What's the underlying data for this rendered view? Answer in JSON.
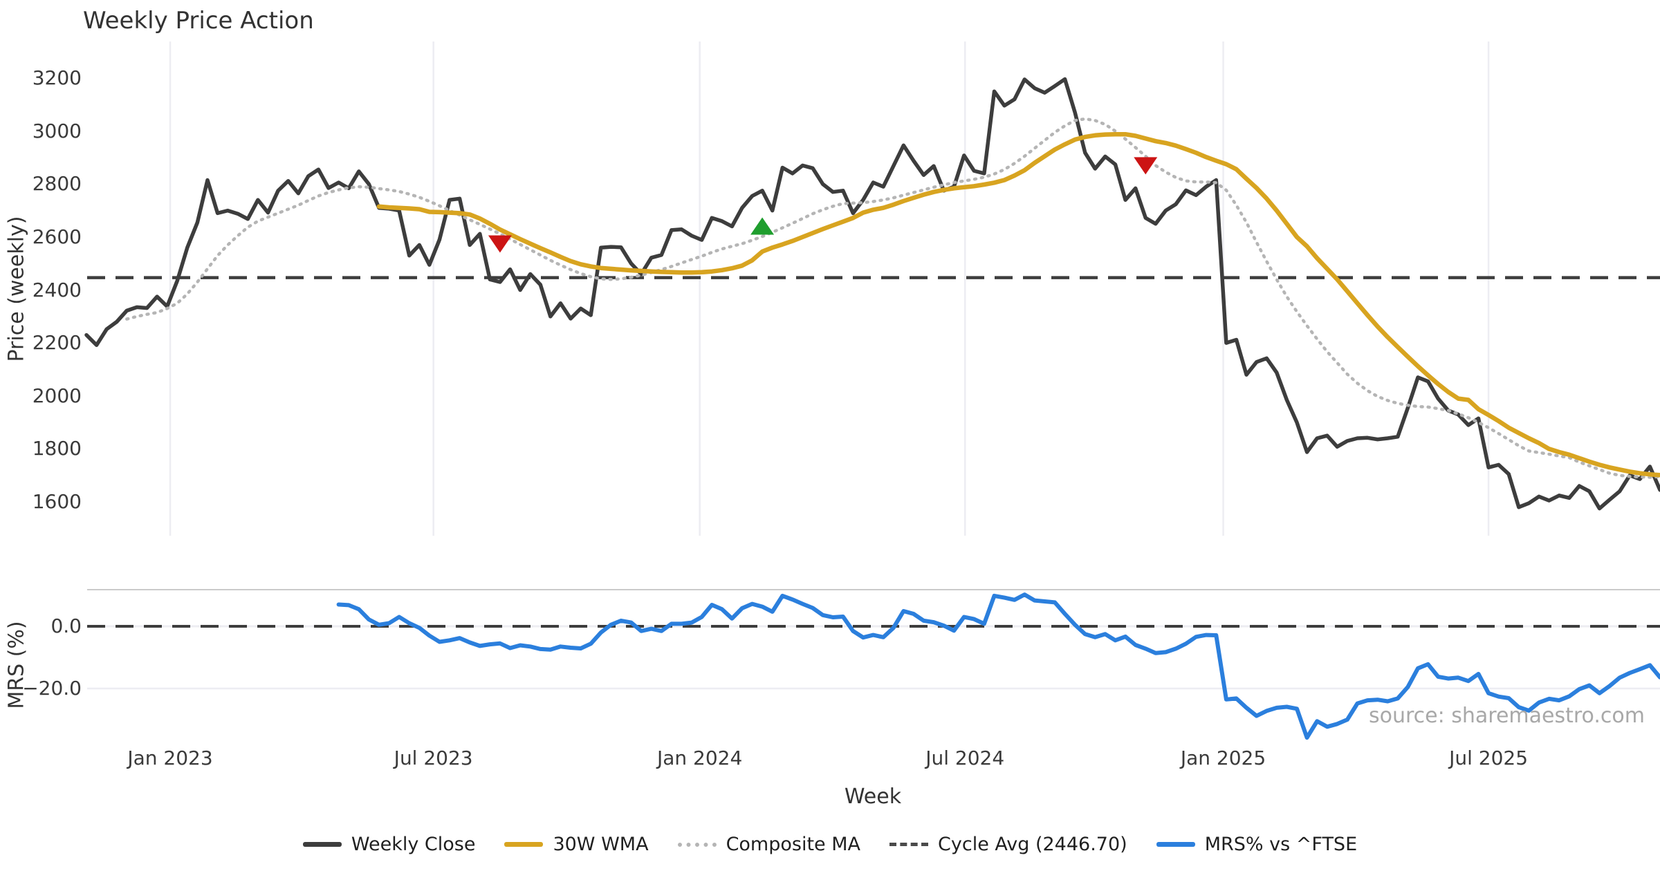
{
  "title": "Weekly Price Action",
  "source_note": "source: sharemaestro.com",
  "axes": {
    "x_label": "Week",
    "price_label": "Price (weekly)",
    "mrs_label": "MRS (%)"
  },
  "legend": {
    "items": [
      {
        "label": "Weekly Close",
        "swatch": "solid",
        "color": "#3d3d3d"
      },
      {
        "label": "30W WMA",
        "swatch": "solid",
        "color": "#d8a420"
      },
      {
        "label": "Composite MA",
        "swatch": "dotted",
        "color": "#b5b5b5"
      },
      {
        "label": "Cycle Avg (2446.70)",
        "swatch": "dashed",
        "color": "#4a4a4a"
      },
      {
        "label": "MRS% vs ^FTSE",
        "swatch": "solid",
        "color": "#2b7fdd"
      }
    ]
  },
  "colors": {
    "weekly_close": "#3d3d3d",
    "wma30": "#d8a420",
    "composite": "#b5b5b5",
    "cycle_avg": "#3d3d3d",
    "mrs": "#2b7fdd",
    "marker_down": "#cc1414",
    "marker_up": "#1f9e2e",
    "gridline": "#ededf2",
    "mrs_spine": "#cbcbcb"
  },
  "chart_data": {
    "type": "line",
    "title": "Weekly Price Action",
    "xlabel": "Week",
    "weeks_total": 157,
    "x_ticks": [
      {
        "label": "Jan 2023",
        "week": 8.3
      },
      {
        "label": "Jul 2023",
        "week": 34.4
      },
      {
        "label": "Jan 2024",
        "week": 60.8
      },
      {
        "label": "Jul 2024",
        "week": 87.1
      },
      {
        "label": "Jan 2025",
        "week": 112.7
      },
      {
        "label": "Jul 2025",
        "week": 139.0
      }
    ],
    "panels": [
      {
        "name": "price",
        "ylabel": "Price (weekly)",
        "ylim": [
          1470,
          3330
        ],
        "yticks": [
          3200,
          3000,
          2800,
          2600,
          2400,
          2200,
          2000,
          1800,
          1600
        ]
      },
      {
        "name": "mrs",
        "ylabel": "MRS (%)",
        "ylim": [
          -37,
          12
        ],
        "yticks": [
          {
            "value": 0,
            "label": "0.0"
          },
          {
            "value": -20,
            "label": "−20.0"
          }
        ]
      }
    ],
    "cycle_avg": 2446.7,
    "series": [
      {
        "name": "Weekly Close",
        "panel": "price",
        "style": "solid",
        "color": "#3d3d3d",
        "width": 5.5,
        "start_week": 0,
        "values": [
          2230,
          2192,
          2252,
          2280,
          2322,
          2335,
          2332,
          2375,
          2338,
          2435,
          2560,
          2655,
          2815,
          2690,
          2700,
          2688,
          2668,
          2740,
          2692,
          2775,
          2812,
          2765,
          2830,
          2855,
          2785,
          2806,
          2784,
          2848,
          2800,
          2710,
          2707,
          2700,
          2530,
          2570,
          2495,
          2590,
          2740,
          2745,
          2570,
          2612,
          2440,
          2430,
          2478,
          2400,
          2460,
          2420,
          2300,
          2350,
          2292,
          2330,
          2305,
          2560,
          2563,
          2561,
          2500,
          2460,
          2522,
          2532,
          2626,
          2629,
          2605,
          2589,
          2672,
          2660,
          2640,
          2710,
          2755,
          2775,
          2700,
          2862,
          2840,
          2870,
          2860,
          2800,
          2770,
          2775,
          2690,
          2740,
          2806,
          2790,
          2868,
          2946,
          2888,
          2834,
          2868,
          2775,
          2790,
          2908,
          2850,
          2840,
          3150,
          3096,
          3120,
          3195,
          3162,
          3145,
          3170,
          3196,
          3070,
          2918,
          2858,
          2904,
          2874,
          2740,
          2784,
          2672,
          2650,
          2700,
          2724,
          2776,
          2758,
          2790,
          2815,
          2200,
          2212,
          2080,
          2128,
          2142,
          2088,
          1985,
          1900,
          1788,
          1840,
          1850,
          1808,
          1830,
          1840,
          1842,
          1836,
          1840,
          1846,
          1955,
          2070,
          2055,
          1990,
          1945,
          1930,
          1890,
          1915,
          1730,
          1740,
          1705,
          1580,
          1595,
          1620,
          1605,
          1624,
          1615,
          1660,
          1640,
          1575,
          1608,
          1640,
          1700,
          1686,
          1733,
          1645
        ]
      },
      {
        "name": "Composite MA",
        "panel": "price",
        "style": "dotted",
        "color": "#b5b5b5",
        "width": 4.5,
        "start_week": 4,
        "values": [
          2290,
          2300,
          2308,
          2315,
          2330,
          2350,
          2385,
          2430,
          2480,
          2530,
          2570,
          2605,
          2637,
          2660,
          2675,
          2690,
          2705,
          2720,
          2738,
          2755,
          2768,
          2778,
          2786,
          2790,
          2788,
          2783,
          2778,
          2772,
          2762,
          2750,
          2735,
          2718,
          2700,
          2683,
          2665,
          2648,
          2630,
          2612,
          2592,
          2572,
          2552,
          2532,
          2512,
          2494,
          2477,
          2462,
          2450,
          2442,
          2440,
          2442,
          2448,
          2456,
          2466,
          2477,
          2489,
          2502,
          2515,
          2528,
          2542,
          2555,
          2565,
          2575,
          2588,
          2602,
          2618,
          2635,
          2652,
          2670,
          2688,
          2703,
          2716,
          2726,
          2728,
          2730,
          2734,
          2740,
          2748,
          2758,
          2768,
          2778,
          2788,
          2797,
          2806,
          2812,
          2818,
          2826,
          2838,
          2855,
          2878,
          2905,
          2935,
          2965,
          2995,
          3020,
          3040,
          3046,
          3040,
          3025,
          3000,
          2970,
          2938,
          2905,
          2870,
          2845,
          2825,
          2812,
          2808,
          2808,
          2805,
          2777,
          2720,
          2655,
          2580,
          2508,
          2440,
          2375,
          2318,
          2265,
          2215,
          2167,
          2125,
          2082,
          2048,
          2020,
          1998,
          1983,
          1972,
          1965,
          1960,
          1958,
          1952,
          1945,
          1932,
          1918,
          1900,
          1880,
          1858,
          1835,
          1812,
          1792,
          1786,
          1780,
          1773,
          1767,
          1750,
          1736,
          1722,
          1708,
          1700,
          1696,
          1694,
          1693,
          1695
        ]
      },
      {
        "name": "30W WMA",
        "panel": "price",
        "style": "solid",
        "color": "#d8a420",
        "width": 6.5,
        "start_week": 29,
        "values": [
          2715,
          2712,
          2710,
          2708,
          2705,
          2695,
          2694,
          2692,
          2690,
          2685,
          2670,
          2650,
          2628,
          2610,
          2592,
          2575,
          2558,
          2542,
          2525,
          2509,
          2497,
          2489,
          2483,
          2480,
          2477,
          2474,
          2472,
          2470,
          2468,
          2467,
          2466,
          2466,
          2467,
          2470,
          2475,
          2482,
          2492,
          2512,
          2545,
          2560,
          2572,
          2585,
          2600,
          2615,
          2630,
          2644,
          2658,
          2672,
          2692,
          2703,
          2710,
          2722,
          2736,
          2748,
          2760,
          2770,
          2778,
          2784,
          2788,
          2792,
          2798,
          2805,
          2815,
          2832,
          2852,
          2880,
          2905,
          2930,
          2950,
          2968,
          2978,
          2984,
          2987,
          2988,
          2988,
          2982,
          2972,
          2962,
          2955,
          2945,
          2932,
          2918,
          2902,
          2888,
          2875,
          2856,
          2820,
          2785,
          2745,
          2700,
          2650,
          2600,
          2565,
          2520,
          2480,
          2440,
          2395,
          2350,
          2305,
          2262,
          2222,
          2185,
          2148,
          2112,
          2078,
          2045,
          2015,
          1990,
          1985,
          1950,
          1928,
          1905,
          1880,
          1860,
          1840,
          1822,
          1800,
          1788,
          1778,
          1765,
          1752,
          1740,
          1730,
          1722,
          1714,
          1708,
          1704,
          1701
        ]
      },
      {
        "name": "MRS% vs ^FTSE",
        "panel": "mrs",
        "style": "solid",
        "color": "#2b7fdd",
        "width": 6,
        "start_week": 25,
        "values": [
          7.0,
          6.8,
          5.5,
          2.2,
          0.5,
          1.0,
          3.0,
          1.0,
          -0.5,
          -3.0,
          -5.0,
          -4.5,
          -3.8,
          -5.2,
          -6.3,
          -5.8,
          -5.5,
          -7.0,
          -6.1,
          -6.5,
          -7.3,
          -7.5,
          -6.5,
          -6.9,
          -7.1,
          -5.6,
          -2.0,
          0.5,
          1.8,
          1.2,
          -1.5,
          -0.8,
          -1.5,
          0.8,
          0.8,
          1.2,
          3.0,
          6.9,
          5.5,
          2.5,
          5.8,
          7.2,
          6.3,
          4.7,
          9.8,
          8.6,
          7.2,
          5.9,
          3.6,
          2.9,
          3.1,
          -1.5,
          -3.6,
          -2.8,
          -3.5,
          -0.5,
          4.9,
          4.0,
          1.8,
          1.3,
          0.2,
          -1.4,
          3.0,
          2.3,
          0.8,
          9.8,
          9.2,
          8.5,
          10.2,
          8.3,
          8.0,
          7.7,
          4.0,
          0.5,
          -2.5,
          -3.5,
          -2.5,
          -4.5,
          -3.3,
          -6.0,
          -7.2,
          -8.6,
          -8.3,
          -7.2,
          -5.6,
          -3.4,
          -2.8,
          -2.9,
          -23.5,
          -23.2,
          -26.2,
          -28.8,
          -27.2,
          -26.2,
          -25.9,
          -26.5,
          -35.8,
          -30.5,
          -32.3,
          -31.4,
          -30.0,
          -24.8,
          -23.8,
          -23.6,
          -24.1,
          -23.2,
          -19.5,
          -13.5,
          -12.2,
          -16.2,
          -16.8,
          -16.5,
          -17.6,
          -15.3,
          -21.5,
          -22.6,
          -23.1,
          -26.0,
          -27.1,
          -24.5,
          -23.3,
          -23.8,
          -22.5,
          -20.2,
          -19.0,
          -21.5,
          -19.2,
          -16.5,
          -15.0,
          -13.8,
          -12.5,
          -16.4
        ]
      }
    ],
    "markers": [
      {
        "shape": "down",
        "week": 41,
        "value": 2575,
        "color": "#cc1414"
      },
      {
        "shape": "up",
        "week": 67,
        "value": 2640,
        "color": "#1f9e2e"
      },
      {
        "shape": "down",
        "week": 105,
        "value": 2870,
        "color": "#cc1414"
      }
    ]
  }
}
